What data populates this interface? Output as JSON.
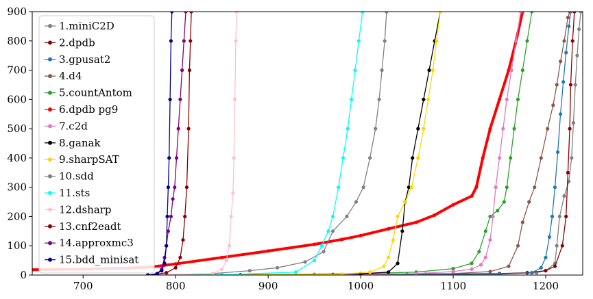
{
  "chart_data": {
    "type": "line",
    "title": "",
    "xlabel": "",
    "ylabel": "",
    "xlim": [
      645,
      1240
    ],
    "ylim": [
      0,
      900
    ],
    "x_ticks": [
      700,
      800,
      900,
      1000,
      1100,
      1200
    ],
    "y_ticks": [
      0,
      100,
      200,
      300,
      400,
      500,
      600,
      700,
      800,
      900
    ],
    "grid": false,
    "legend_position": "upper-left",
    "series": [
      {
        "name": "1.miniC2D",
        "color": "#808080",
        "points": [
          [
            770,
            0
          ],
          [
            850,
            1
          ],
          [
            950,
            2
          ],
          [
            1050,
            3
          ],
          [
            1150,
            4
          ],
          [
            1190,
            8
          ],
          [
            1200,
            15
          ],
          [
            1210,
            40
          ],
          [
            1212,
            100
          ],
          [
            1215,
            200
          ],
          [
            1220,
            270
          ],
          [
            1225,
            320
          ],
          [
            1228,
            400
          ],
          [
            1230,
            520
          ],
          [
            1232,
            650
          ],
          [
            1234,
            750
          ],
          [
            1236,
            840
          ],
          [
            1238,
            900
          ]
        ]
      },
      {
        "name": "2.dpdb",
        "color": "#8b0000",
        "points": [
          [
            770,
            0
          ],
          [
            870,
            1
          ],
          [
            970,
            2
          ],
          [
            1070,
            3
          ],
          [
            1150,
            5
          ],
          [
            1180,
            8
          ],
          [
            1200,
            15
          ],
          [
            1210,
            30
          ],
          [
            1218,
            100
          ],
          [
            1222,
            200
          ],
          [
            1224,
            350
          ],
          [
            1226,
            500
          ],
          [
            1227,
            650
          ],
          [
            1229,
            800
          ],
          [
            1231,
            900
          ]
        ]
      },
      {
        "name": "3.gpusat2",
        "color": "#1f77b4",
        "points": [
          [
            770,
            0
          ],
          [
            900,
            1
          ],
          [
            1050,
            2
          ],
          [
            1150,
            3
          ],
          [
            1185,
            8
          ],
          [
            1195,
            25
          ],
          [
            1200,
            60
          ],
          [
            1204,
            130
          ],
          [
            1207,
            200
          ],
          [
            1210,
            300
          ],
          [
            1213,
            420
          ],
          [
            1216,
            550
          ],
          [
            1219,
            660
          ],
          [
            1222,
            760
          ],
          [
            1225,
            850
          ],
          [
            1227,
            900
          ]
        ]
      },
      {
        "name": "4.d4",
        "color": "#8c564b",
        "points": [
          [
            770,
            0
          ],
          [
            900,
            1
          ],
          [
            1000,
            3
          ],
          [
            1100,
            5
          ],
          [
            1140,
            12
          ],
          [
            1160,
            30
          ],
          [
            1170,
            100
          ],
          [
            1175,
            180
          ],
          [
            1182,
            250
          ],
          [
            1188,
            300
          ],
          [
            1195,
            400
          ],
          [
            1202,
            500
          ],
          [
            1208,
            580
          ],
          [
            1212,
            650
          ],
          [
            1216,
            730
          ],
          [
            1220,
            800
          ],
          [
            1224,
            880
          ],
          [
            1226,
            900
          ]
        ]
      },
      {
        "name": "5.countAntom",
        "color": "#2ca02c",
        "points": [
          [
            770,
            0
          ],
          [
            900,
            2
          ],
          [
            1000,
            5
          ],
          [
            1060,
            10
          ],
          [
            1100,
            22
          ],
          [
            1120,
            40
          ],
          [
            1128,
            80
          ],
          [
            1135,
            150
          ],
          [
            1140,
            200
          ],
          [
            1148,
            220
          ],
          [
            1155,
            250
          ],
          [
            1158,
            300
          ],
          [
            1162,
            400
          ],
          [
            1166,
            500
          ],
          [
            1170,
            600
          ],
          [
            1175,
            700
          ],
          [
            1180,
            800
          ],
          [
            1185,
            900
          ]
        ]
      },
      {
        "name": "6.dpdb pg9",
        "color": "#ff0000",
        "points": [
          [
            645,
            18
          ],
          [
            700,
            20
          ],
          [
            750,
            24
          ],
          [
            775,
            28
          ],
          [
            800,
            38
          ],
          [
            850,
            60
          ],
          [
            900,
            82
          ],
          [
            950,
            105
          ],
          [
            980,
            122
          ],
          [
            1000,
            135
          ],
          [
            1030,
            158
          ],
          [
            1060,
            180
          ],
          [
            1080,
            205
          ],
          [
            1100,
            240
          ],
          [
            1120,
            270
          ],
          [
            1125,
            300
          ],
          [
            1132,
            400
          ],
          [
            1140,
            500
          ],
          [
            1150,
            600
          ],
          [
            1160,
            700
          ],
          [
            1168,
            800
          ],
          [
            1175,
            900
          ]
        ]
      },
      {
        "name": "7.c2d",
        "color": "#e377c2",
        "points": [
          [
            770,
            0
          ],
          [
            900,
            1
          ],
          [
            1000,
            2
          ],
          [
            1060,
            5
          ],
          [
            1100,
            12
          ],
          [
            1120,
            20
          ],
          [
            1130,
            35
          ],
          [
            1135,
            60
          ],
          [
            1140,
            120
          ],
          [
            1143,
            200
          ],
          [
            1146,
            300
          ],
          [
            1150,
            400
          ],
          [
            1154,
            500
          ],
          [
            1158,
            600
          ],
          [
            1163,
            700
          ],
          [
            1168,
            800
          ],
          [
            1173,
            900
          ]
        ]
      },
      {
        "name": "8.ganak",
        "color": "#000000",
        "points": [
          [
            770,
            0
          ],
          [
            900,
            1
          ],
          [
            1000,
            4
          ],
          [
            1030,
            10
          ],
          [
            1040,
            40
          ],
          [
            1045,
            150
          ],
          [
            1048,
            250
          ],
          [
            1052,
            300
          ],
          [
            1056,
            400
          ],
          [
            1062,
            500
          ],
          [
            1068,
            600
          ],
          [
            1074,
            700
          ],
          [
            1080,
            800
          ],
          [
            1086,
            900
          ]
        ]
      },
      {
        "name": "9.sharpSAT",
        "color": "#ffd700",
        "points": [
          [
            770,
            0
          ],
          [
            900,
            1
          ],
          [
            980,
            3
          ],
          [
            1010,
            10
          ],
          [
            1025,
            30
          ],
          [
            1030,
            60
          ],
          [
            1035,
            120
          ],
          [
            1040,
            200
          ],
          [
            1048,
            250
          ],
          [
            1055,
            300
          ],
          [
            1062,
            400
          ],
          [
            1068,
            500
          ],
          [
            1073,
            600
          ],
          [
            1078,
            700
          ],
          [
            1082,
            800
          ],
          [
            1086,
            900
          ]
        ]
      },
      {
        "name": "10.sdd",
        "color": "#808080",
        "points": [
          [
            770,
            0
          ],
          [
            840,
            5
          ],
          [
            880,
            15
          ],
          [
            910,
            25
          ],
          [
            940,
            45
          ],
          [
            960,
            80
          ],
          [
            970,
            150
          ],
          [
            985,
            200
          ],
          [
            995,
            250
          ],
          [
            1003,
            300
          ],
          [
            1010,
            400
          ],
          [
            1016,
            500
          ],
          [
            1020,
            600
          ],
          [
            1023,
            700
          ],
          [
            1026,
            800
          ],
          [
            1028,
            900
          ]
        ]
      },
      {
        "name": "11.sts",
        "color": "#00ffff",
        "points": [
          [
            770,
            0
          ],
          [
            850,
            1
          ],
          [
            930,
            10
          ],
          [
            950,
            50
          ],
          [
            958,
            100
          ],
          [
            965,
            150
          ],
          [
            970,
            200
          ],
          [
            976,
            300
          ],
          [
            981,
            400
          ],
          [
            986,
            500
          ],
          [
            990,
            600
          ],
          [
            994,
            700
          ],
          [
            998,
            800
          ],
          [
            1002,
            900
          ]
        ]
      },
      {
        "name": "12.dsharp",
        "color": "#ffc0cb",
        "points": [
          [
            770,
            0
          ],
          [
            840,
            5
          ],
          [
            850,
            20
          ],
          [
            855,
            50
          ],
          [
            858,
            100
          ],
          [
            860,
            200
          ],
          [
            862,
            280
          ],
          [
            863,
            400
          ],
          [
            864,
            600
          ],
          [
            865,
            800
          ],
          [
            866,
            900
          ]
        ]
      },
      {
        "name": "13.cnf2eadt",
        "color": "#8b0000",
        "points": [
          [
            770,
            0
          ],
          [
            780,
            3
          ],
          [
            790,
            8
          ],
          [
            800,
            25
          ],
          [
            805,
            60
          ],
          [
            808,
            120
          ],
          [
            810,
            200
          ],
          [
            812,
            300
          ],
          [
            814,
            500
          ],
          [
            815,
            700
          ],
          [
            816,
            800
          ],
          [
            817,
            900
          ]
        ]
      },
      {
        "name": "14.approxmc3",
        "color": "#800080",
        "points": [
          [
            770,
            0
          ],
          [
            780,
            5
          ],
          [
            785,
            20
          ],
          [
            788,
            60
          ],
          [
            790,
            100
          ],
          [
            792,
            150
          ],
          [
            795,
            200
          ],
          [
            797,
            260
          ],
          [
            799,
            300
          ],
          [
            801,
            400
          ],
          [
            803,
            500
          ],
          [
            805,
            600
          ],
          [
            807,
            700
          ],
          [
            809,
            800
          ],
          [
            811,
            900
          ]
        ]
      },
      {
        "name": "15.bdd_minisat",
        "color": "#00008b",
        "points": [
          [
            770,
            0
          ],
          [
            780,
            5
          ],
          [
            785,
            15
          ],
          [
            788,
            40
          ],
          [
            790,
            100
          ],
          [
            791,
            200
          ],
          [
            792,
            300
          ],
          [
            793,
            400
          ],
          [
            794,
            600
          ],
          [
            795,
            800
          ],
          [
            796,
            900
          ]
        ]
      }
    ]
  }
}
